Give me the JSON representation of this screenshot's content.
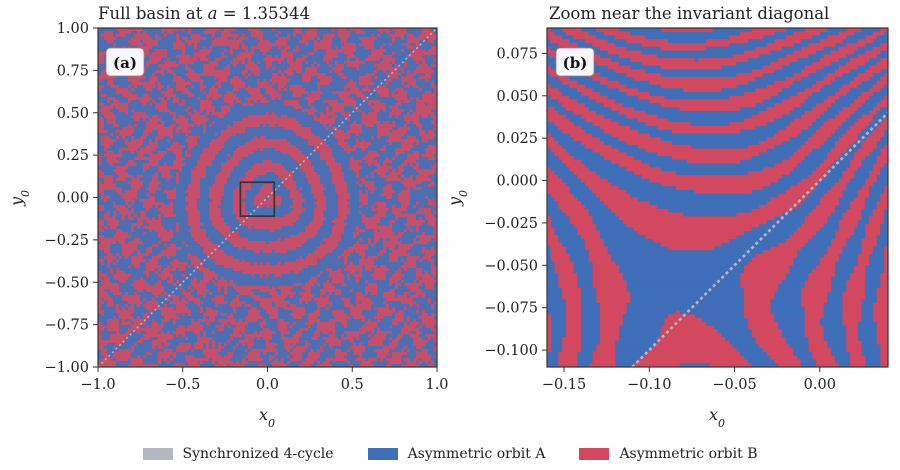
{
  "colors": {
    "sync": "#b4b8c2",
    "orbit_a": "#3f6fb8",
    "orbit_b": "#d2485e",
    "frame": "#333333"
  },
  "legend": {
    "items": [
      {
        "label": "Synchronized 4-cycle",
        "color": "#b4b8c2"
      },
      {
        "label": "Asymmetric orbit A",
        "color": "#3f6fb8"
      },
      {
        "label": "Asymmetric orbit B",
        "color": "#d2485e"
      }
    ]
  },
  "chart_data": [
    {
      "type": "heatmap",
      "panel_label": "(a)",
      "title": "Full basin at a = 1.35344",
      "xlabel": "x0",
      "ylabel": "y0",
      "xlim": [
        -1.0,
        1.0
      ],
      "ylim": [
        -1.0,
        1.0
      ],
      "xticks": [
        -1.0,
        -0.5,
        0.0,
        0.5,
        1.0
      ],
      "xtick_labels": [
        "−1.0",
        "−0.5",
        "0.0",
        "0.5",
        "1.0"
      ],
      "yticks": [
        1.0,
        0.75,
        0.5,
        0.25,
        0.0,
        -0.25,
        -0.5,
        -0.75,
        -1.0
      ],
      "ytick_labels": [
        "1.00",
        "0.75",
        "0.50",
        "0.25",
        "0.00",
        "−0.25",
        "−0.50",
        "−0.75",
        "−1.00"
      ],
      "categories": [
        "Synchronized 4-cycle",
        "Asymmetric orbit A",
        "Asymmetric orbit B"
      ],
      "zoom_box": {
        "x": [
          -0.16,
          0.04
        ],
        "y": [
          -0.11,
          0.09
        ]
      },
      "diagonal": "y0 = x0 (synchronized)"
    },
    {
      "type": "heatmap",
      "panel_label": "(b)",
      "title": "Zoom near the invariant diagonal",
      "xlabel": "x0",
      "ylabel": "y0",
      "xlim": [
        -0.16,
        0.04
      ],
      "ylim": [
        -0.11,
        0.09
      ],
      "xticks": [
        -0.15,
        -0.1,
        -0.05,
        0.0
      ],
      "xtick_labels": [
        "−0.15",
        "−0.10",
        "−0.05",
        "0.00"
      ],
      "yticks": [
        0.075,
        0.05,
        0.025,
        0.0,
        -0.025,
        -0.05,
        -0.075,
        -0.1
      ],
      "ytick_labels": [
        "0.075",
        "0.050",
        "0.025",
        "0.000",
        "−0.025",
        "−0.050",
        "−0.075",
        "−0.100"
      ],
      "categories": [
        "Synchronized 4-cycle",
        "Asymmetric orbit A",
        "Asymmetric orbit B"
      ],
      "diagonal": "y0 = x0 (synchronized)"
    }
  ]
}
